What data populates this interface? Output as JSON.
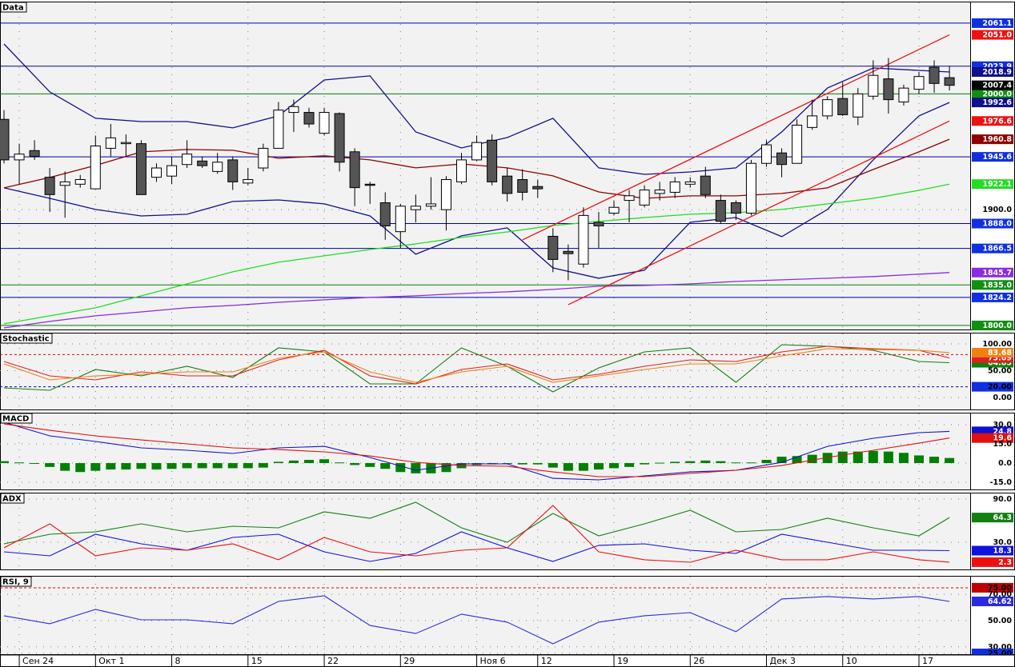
{
  "chart_data": [
    {
      "type": "candlestick",
      "title": "Data",
      "categories": [
        null,
        "Сен 24",
        null,
        null,
        null,
        null,
        "Окт 1",
        null,
        null,
        null,
        null,
        "8",
        null,
        null,
        null,
        null,
        "15",
        null,
        null,
        null,
        null,
        "22",
        null,
        null,
        null,
        null,
        "29",
        null,
        null,
        null,
        null,
        "Ноя 6",
        null,
        null,
        null,
        "12",
        null,
        null,
        null,
        null,
        "19",
        null,
        null,
        null,
        null,
        "26",
        null,
        null,
        null,
        null,
        "Дек 3",
        null,
        null,
        null,
        null,
        "10",
        null,
        null,
        null,
        null,
        "17",
        null,
        null
      ],
      "open": [
        1978,
        1943,
        1951,
        1928,
        1921,
        1922,
        1918,
        1953,
        1957,
        1957,
        1928,
        1929,
        1939,
        1942,
        1933,
        1943,
        1923,
        1936,
        1953,
        1984,
        1984,
        1966,
        1983,
        1950,
        1922,
        1906,
        1881,
        1900,
        1903,
        1900,
        1924,
        1943,
        1960,
        1929,
        1926,
        1920,
        1877,
        1864,
        1853,
        1889,
        1897,
        1908,
        1904,
        1914,
        1915,
        1922,
        1929,
        1908,
        1906,
        1897,
        1940,
        1949,
        1940,
        1971,
        1981,
        1996,
        1980,
        1998,
        2013,
        1993,
        2004,
        2023,
        2014
      ],
      "high": [
        1986,
        1957,
        1960,
        1936,
        1933,
        1930,
        1964,
        1974,
        1965,
        1960,
        1940,
        1946,
        1960,
        1946,
        1949,
        1946,
        1936,
        1957,
        1993,
        1995,
        1988,
        1988,
        1984,
        1953,
        1924,
        1915,
        1905,
        1913,
        1928,
        1929,
        1949,
        1964,
        1965,
        1936,
        1935,
        1926,
        1884,
        1870,
        1902,
        1898,
        1908,
        1917,
        1921,
        1924,
        1928,
        1928,
        1937,
        1913,
        1908,
        1943,
        1960,
        1953,
        1978,
        1995,
        1998,
        2010,
        2005,
        2029,
        2031,
        2008,
        2019,
        2029,
        2024
      ],
      "low": [
        1940,
        1922,
        1943,
        1898,
        1893,
        1919,
        1918,
        1946,
        1946,
        1913,
        1924,
        1922,
        1936,
        1936,
        1931,
        1917,
        1921,
        1933,
        1953,
        1967,
        1971,
        1964,
        1933,
        1903,
        1905,
        1874,
        1867,
        1889,
        1900,
        1882,
        1922,
        1942,
        1921,
        1907,
        1908,
        1910,
        1846,
        1839,
        1850,
        1867,
        1895,
        1889,
        1902,
        1908,
        1910,
        1919,
        1910,
        1888,
        1891,
        1895,
        1937,
        1928,
        1940,
        1969,
        1978,
        1981,
        1973,
        1995,
        1983,
        1990,
        2000,
        2001,
        2003
      ],
      "close": [
        1943,
        1948,
        1946,
        1913,
        1924,
        1926,
        1955,
        1962,
        1958,
        1913,
        1936,
        1938,
        1948,
        1938,
        1941,
        1924,
        1926,
        1953,
        1986,
        1989,
        1974,
        1984,
        1941,
        1919,
        1921,
        1886,
        1903,
        1903,
        1905,
        1926,
        1943,
        1958,
        1924,
        1914,
        1915,
        1918,
        1857,
        1862,
        1895,
        1886,
        1902,
        1912,
        1917,
        1917,
        1924,
        1924,
        1913,
        1890,
        1897,
        1940,
        1956,
        1939,
        1973,
        1981,
        1995,
        1982,
        2000,
        2016,
        1995,
        2005,
        2015,
        2009,
        2007.4
      ],
      "up_color": "#ffffff",
      "down_color": "#555555",
      "last_color": "#000000",
      "ylim": [
        1796.5,
        2079.7
      ],
      "yticks": [
        {
          "value": 1900,
          "label": "1900.0"
        }
      ],
      "grid": true,
      "hlines": [
        {
          "value": 2061.1,
          "label": "2061.1",
          "color": "#0000a0"
        },
        {
          "value": 2023.9,
          "label": "2023.9",
          "color": "#0000a0"
        },
        {
          "value": 2000,
          "label": "2000.0",
          "color": "#008000"
        },
        {
          "value": 1945.6,
          "label": "1945.6",
          "color": "#0000a0"
        },
        {
          "value": 1888,
          "label": "1888.0",
          "color": "#0000a0"
        },
        {
          "value": 1866.5,
          "label": "1866.5",
          "color": "#0000a0"
        },
        {
          "value": 1835,
          "label": "1835.0",
          "color": "#008000"
        },
        {
          "value": 1824.2,
          "label": "1824.2",
          "color": "#0000a0"
        },
        {
          "value": 1800,
          "label": "1800.0",
          "color": "#008000"
        }
      ],
      "overlays": [
        {
          "color": "#10108a",
          "x": [
            0,
            3,
            6,
            9,
            12,
            15,
            18,
            21,
            24,
            27,
            30,
            33,
            36,
            39,
            42,
            45,
            48,
            51,
            54,
            57,
            60,
            62
          ],
          "values": [
            2043.1,
            2001.7,
            1978.9,
            1976.1,
            1976.1,
            1970.6,
            1981.0,
            2012.0,
            2015.5,
            1967.1,
            1953.3,
            1962.3,
            1978.9,
            1936.1,
            1930.5,
            1932.6,
            1936.1,
            1967.1,
            2005.1,
            2022.4,
            2020.3,
            2018.9
          ]
        },
        {
          "color": "#10108a",
          "x": [
            0,
            3,
            6,
            9,
            12,
            15,
            18,
            21,
            24,
            27,
            30,
            33,
            36,
            39,
            42,
            45,
            48,
            51,
            54,
            57,
            60,
            62
          ],
          "values": [
            1918.8,
            1909.8,
            1900.2,
            1894.6,
            1896.0,
            1907.1,
            1908.4,
            1905.0,
            1894.6,
            1861.5,
            1877.4,
            1884.3,
            1849.7,
            1840.8,
            1847.7,
            1889.1,
            1893.2,
            1876.7,
            1900.2,
            1943.0,
            1981.0,
            1992.6
          ]
        },
        {
          "color": "#900000",
          "x": [
            0,
            3,
            6,
            9,
            12,
            15,
            18,
            21,
            24,
            27,
            30,
            33,
            36,
            39,
            42,
            45,
            48,
            51,
            54,
            57,
            60,
            62
          ],
          "values": [
            1918.8,
            1927.8,
            1938.2,
            1949.9,
            1952.0,
            1951.3,
            1944.4,
            1946.5,
            1943.0,
            1936.1,
            1939.5,
            1936.1,
            1929.2,
            1915.3,
            1909.8,
            1911.9,
            1911.9,
            1914.0,
            1918.8,
            1934.7,
            1949.9,
            1960.8
          ]
        },
        {
          "color": "#22dd22",
          "x": [
            0,
            3,
            6,
            9,
            12,
            15,
            18,
            21,
            24,
            27,
            30,
            33,
            36,
            39,
            42,
            45,
            48,
            51,
            54,
            57,
            60,
            62
          ],
          "values": [
            1801.4,
            1808.3,
            1815.2,
            1825.6,
            1835.9,
            1846.3,
            1854.6,
            1860.1,
            1865.6,
            1870.5,
            1876.0,
            1880.8,
            1886.3,
            1889.8,
            1893.2,
            1896.0,
            1897.4,
            1900.2,
            1905.0,
            1909.8,
            1916.7,
            1922.1
          ]
        },
        {
          "color": "#8a2be2",
          "x": [
            0,
            3,
            6,
            9,
            12,
            15,
            18,
            21,
            24,
            27,
            30,
            33,
            36,
            39,
            42,
            45,
            48,
            51,
            54,
            57,
            60,
            62
          ],
          "values": [
            1797.9,
            1803.5,
            1808.3,
            1811.7,
            1815.2,
            1817.3,
            1820.0,
            1822.1,
            1824.2,
            1825.6,
            1827.6,
            1829.0,
            1831.1,
            1833.9,
            1834.5,
            1835.9,
            1838.0,
            1839.4,
            1840.8,
            1842.2,
            1844.3,
            1845.7
          ]
        },
        {
          "color": "#ee1111",
          "x": [
            34,
            62
          ],
          "values": [
            1873.9,
            2051.0
          ],
          "value_labels": [
            null,
            "2051.0"
          ]
        },
        {
          "color": "#ee1111",
          "x": [
            37,
            62
          ],
          "values": [
            1818.0,
            1976.6
          ]
        }
      ]
    },
    {
      "type": "line",
      "title": "Stochastic",
      "x": [
        0,
        3,
        6,
        9,
        12,
        15,
        18,
        21,
        24,
        27,
        30,
        33,
        36,
        39,
        42,
        45,
        48,
        51,
        54,
        57,
        60,
        62
      ],
      "ylim": [
        -22.4,
        120.9
      ],
      "grid": true,
      "yticks": [
        {
          "value": 100,
          "label": "100.00"
        },
        {
          "value": 50,
          "label": "50.00"
        },
        {
          "value": 20,
          "label": "20.00",
          "color": "#1030e0"
        },
        {
          "value": 0,
          "label": "0.00"
        }
      ],
      "levels": [
        {
          "value": 80,
          "color": "#e00000"
        },
        {
          "value": 20,
          "color": "#0000d0"
        }
      ],
      "series": [
        {
          "color": "#108010",
          "values": [
            17.9,
            13.4,
            52.2,
            40.3,
            58.2,
            37.3,
            92.5,
            85.1,
            25.4,
            25.4,
            92.5,
            58.2,
            10.4,
            55.2,
            85.1,
            92.5,
            28.4,
            98.5,
            95.5,
            88.1,
            67.2,
            64.85
          ]
        },
        {
          "color": "#e02020",
          "values": [
            67.2,
            40.3,
            32.8,
            47.8,
            40.3,
            40.3,
            70.1,
            88.1,
            40.3,
            25.4,
            52.2,
            62.7,
            32.8,
            43.3,
            58.2,
            70.1,
            67.2,
            85.1,
            95.5,
            91.0,
            88.1,
            73.69
          ]
        },
        {
          "color": "#f08010",
          "values": [
            62.7,
            32.8,
            40.3,
            43.3,
            47.8,
            47.8,
            73.1,
            85.1,
            47.8,
            28.4,
            47.8,
            58.2,
            28.4,
            40.3,
            52.2,
            62.7,
            62.7,
            77.6,
            91.0,
            89.6,
            88.1,
            83.68
          ]
        }
      ]
    },
    {
      "type": "line",
      "title": "MACD",
      "x": [
        0,
        3,
        6,
        9,
        12,
        15,
        18,
        21,
        24,
        27,
        30,
        33,
        36,
        39,
        42,
        45,
        48,
        51,
        54,
        57,
        60,
        62
      ],
      "ylim": [
        -20.6,
        39.4
      ],
      "grid": true,
      "yticks": [
        {
          "value": 30,
          "label": "30.0"
        },
        {
          "value": 15,
          "label": "15.0"
        },
        {
          "value": 0,
          "label": "0.0"
        },
        {
          "value": -15,
          "label": "-15.0"
        }
      ],
      "histogram": {
        "color": "#008000",
        "values": [
          1.5,
          0.5,
          -0.5,
          -3,
          -6,
          -7,
          -6,
          -5,
          -5,
          -4.5,
          -5,
          -4.5,
          -4,
          -4,
          -4,
          -4,
          -4,
          -3.5,
          1,
          2,
          2.5,
          3,
          0.5,
          -1.5,
          -3,
          -4.5,
          -7,
          -8,
          -8,
          -7,
          -4,
          -1.5,
          -1,
          -0.5,
          -1,
          -1,
          -3.5,
          -6,
          -6,
          -5,
          -4,
          -3,
          -1,
          0.3,
          1,
          1.5,
          2,
          1.5,
          0.5,
          0.5,
          2.5,
          5,
          5.5,
          6.5,
          8,
          9,
          9,
          9.5,
          9,
          8,
          6,
          5,
          4
        ]
      },
      "series": [
        {
          "color": "#1010d0",
          "values": [
            31.9,
            21.3,
            16.9,
            11.9,
            10.0,
            7.5,
            11.9,
            13.1,
            4.4,
            -5.6,
            -0.6,
            -0.6,
            -11.9,
            -13.1,
            -10.0,
            -6.9,
            -5.6,
            0.6,
            13.1,
            19.4,
            23.8,
            24.8
          ]
        },
        {
          "color": "#e01010",
          "values": [
            30.6,
            25.6,
            21.3,
            18.1,
            15.0,
            11.9,
            10.6,
            8.8,
            5.6,
            0.6,
            -1.9,
            -2.5,
            -6.9,
            -10.6,
            -10.6,
            -8.1,
            -5.6,
            -1.9,
            4.4,
            10.0,
            15.6,
            19.6
          ]
        }
      ]
    },
    {
      "type": "line",
      "title": "ADX",
      "x": [
        0,
        3,
        6,
        9,
        12,
        15,
        18,
        21,
        24,
        27,
        30,
        33,
        36,
        39,
        42,
        45,
        48,
        51,
        54,
        57,
        60,
        62
      ],
      "ylim": [
        -7.8,
        98.9
      ],
      "grid": true,
      "yticks": [
        {
          "value": 90,
          "label": "90.0"
        },
        {
          "value": 30,
          "label": "30.0"
        }
      ],
      "series": [
        {
          "color": "#108010",
          "values": [
            27.8,
            41.1,
            44.4,
            55.6,
            44.4,
            52.2,
            50.0,
            72.2,
            63.3,
            85.6,
            50.0,
            30.0,
            70.0,
            38.9,
            55.6,
            74.4,
            44.4,
            47.8,
            63.3,
            50.0,
            38.9,
            64.3
          ]
        },
        {
          "color": "#1010e0",
          "values": [
            16.7,
            11.1,
            41.1,
            27.8,
            18.9,
            36.7,
            41.1,
            16.7,
            3.3,
            14.4,
            44.4,
            22.2,
            3.3,
            25.6,
            27.8,
            18.9,
            14.4,
            41.1,
            30.0,
            18.9,
            18.9,
            18.3
          ]
        },
        {
          "color": "#ee1010",
          "values": [
            22.2,
            55.6,
            11.1,
            22.2,
            18.9,
            27.8,
            5.6,
            36.7,
            16.7,
            11.1,
            18.9,
            22.2,
            81.1,
            16.7,
            5.6,
            2.2,
            18.9,
            5.6,
            5.6,
            16.7,
            5.6,
            2.3
          ]
        }
      ]
    },
    {
      "type": "line",
      "title": "RSI, 9",
      "x": [
        0,
        3,
        6,
        9,
        12,
        15,
        18,
        21,
        24,
        27,
        30,
        33,
        36,
        39,
        42,
        45,
        48,
        51,
        54,
        57,
        60,
        62
      ],
      "ylim": [
        24.4,
        84.1
      ],
      "grid": true,
      "yticks": [
        {
          "value": 75,
          "label": "75.00",
          "color": "#c00000"
        },
        {
          "value": 70,
          "label": "70.00"
        },
        {
          "value": 50,
          "label": "50.00"
        },
        {
          "value": 30,
          "label": "30.00"
        },
        {
          "value": 25,
          "label": "25.00",
          "color": "#1030e0"
        }
      ],
      "levels": [
        {
          "value": 75,
          "color": "#e00000"
        }
      ],
      "series": [
        {
          "color": "#2a2ae0",
          "values": [
            53.7,
            47.6,
            58.5,
            50.6,
            50.6,
            47.6,
            64.6,
            68.9,
            46.3,
            40.2,
            54.9,
            48.8,
            32.3,
            48.8,
            53.7,
            56.1,
            41.5,
            66.5,
            68.3,
            66.5,
            68.3,
            64.62
          ]
        }
      ]
    }
  ]
}
